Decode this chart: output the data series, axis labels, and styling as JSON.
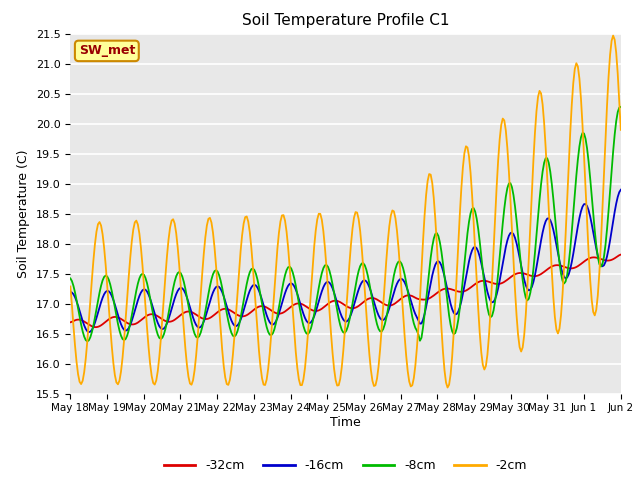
{
  "title": "Soil Temperature Profile C1",
  "xlabel": "Time",
  "ylabel": "Soil Temperature (C)",
  "ylim": [
    15.5,
    21.5
  ],
  "plot_bg": "#e8e8e8",
  "annotation_text": "SW_met",
  "annotation_bg": "#ffff99",
  "annotation_border": "#cc8800",
  "annotation_text_color": "#990000",
  "series_colors": {
    "-32cm": "#dd0000",
    "-16cm": "#0000cc",
    "-8cm": "#00bb00",
    "-2cm": "#ffaa00"
  },
  "legend_labels": [
    "-32cm",
    "-16cm",
    "-8cm",
    "-2cm"
  ],
  "x_tick_labels": [
    "May 18",
    "May 19",
    "May 20",
    "May 21",
    "May 22",
    "May 23",
    "May 24",
    "May 25",
    "May 26",
    "May 27",
    "May 28",
    "May 29",
    "May 30",
    "May 31",
    "Jun 1",
    "Jun 2"
  ],
  "yticks": [
    15.5,
    16.0,
    16.5,
    17.0,
    17.5,
    18.0,
    18.5,
    19.0,
    19.5,
    20.0,
    20.5,
    21.0,
    21.5
  ]
}
